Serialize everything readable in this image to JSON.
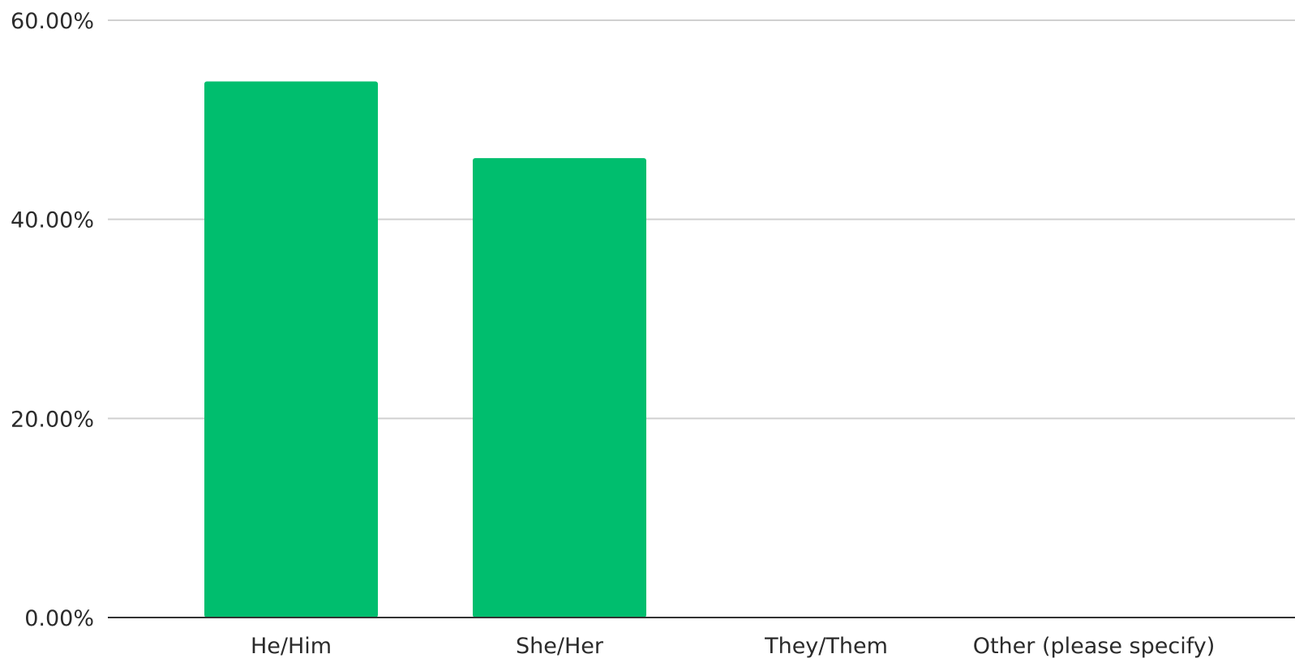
{
  "chart_data": {
    "type": "bar",
    "categories": [
      "He/Him",
      "She/Her",
      "They/Them",
      "Other (please specify)"
    ],
    "values": [
      53.85,
      46.15,
      0,
      0
    ],
    "ylim": [
      0,
      60
    ],
    "yticks": [
      0,
      20,
      40,
      60
    ],
    "ytick_labels": [
      "0.00%",
      "20.00%",
      "40.00%",
      "60.00%"
    ],
    "grid": true,
    "legend": "none",
    "colors": {
      "bar": "#00be6e",
      "grid": "#d0d0d0",
      "axis": "#333333",
      "text": "#2b2b2b"
    }
  }
}
